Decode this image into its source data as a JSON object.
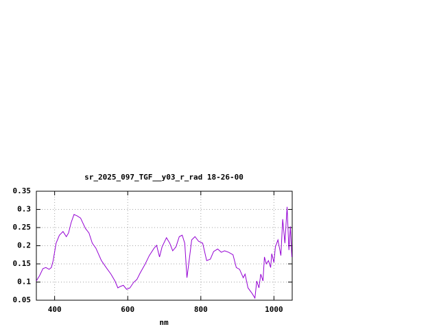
{
  "chart_data": {
    "type": "line",
    "title": "sr_2025_097_TGF__y03_r_rad 18-26-00",
    "x_label": "nm",
    "xlim": [
      350,
      1050
    ],
    "xticks": [
      400,
      600,
      800,
      1000
    ],
    "ylim": [
      0.05,
      0.35
    ],
    "yticks": [
      0.05,
      0.1,
      0.15,
      0.2,
      0.25,
      0.3,
      0.35
    ],
    "grid": true,
    "series": [
      {
        "color": "#9400d3",
        "x": [
          350,
          359,
          368,
          376,
          385,
          391,
          396,
          404,
          413,
          423,
          432,
          438,
          445,
          453,
          462,
          471,
          484,
          494,
          503,
          513,
          528,
          541,
          554,
          565,
          573,
          580,
          588,
          597,
          606,
          616,
          625,
          634,
          648,
          659,
          672,
          679,
          687,
          694,
          706,
          715,
          723,
          732,
          741,
          749,
          756,
          762,
          768,
          775,
          784,
          794,
          805,
          816,
          826,
          835,
          846,
          856,
          865,
          876,
          888,
          897,
          906,
          916,
          921,
          929,
          940,
          948,
          953,
          959,
          964,
          970,
          974,
          979,
          985,
          991,
          994,
          1000,
          1004,
          1011,
          1019,
          1024,
          1030,
          1036,
          1041,
          1045,
          1049
        ],
        "values": [
          0.103,
          0.118,
          0.137,
          0.14,
          0.135,
          0.14,
          0.159,
          0.207,
          0.229,
          0.239,
          0.225,
          0.235,
          0.263,
          0.286,
          0.282,
          0.276,
          0.248,
          0.235,
          0.207,
          0.193,
          0.159,
          0.14,
          0.122,
          0.103,
          0.084,
          0.088,
          0.091,
          0.08,
          0.084,
          0.099,
          0.107,
          0.125,
          0.15,
          0.173,
          0.193,
          0.201,
          0.169,
          0.197,
          0.222,
          0.207,
          0.186,
          0.197,
          0.225,
          0.229,
          0.207,
          0.112,
          0.159,
          0.216,
          0.225,
          0.212,
          0.207,
          0.159,
          0.163,
          0.184,
          0.191,
          0.182,
          0.186,
          0.182,
          0.175,
          0.14,
          0.135,
          0.112,
          0.122,
          0.084,
          0.069,
          0.056,
          0.103,
          0.084,
          0.122,
          0.103,
          0.169,
          0.15,
          0.159,
          0.14,
          0.178,
          0.154,
          0.197,
          0.216,
          0.173,
          0.273,
          0.207,
          0.307,
          0.188,
          0.253,
          0.169
        ]
      }
    ]
  }
}
